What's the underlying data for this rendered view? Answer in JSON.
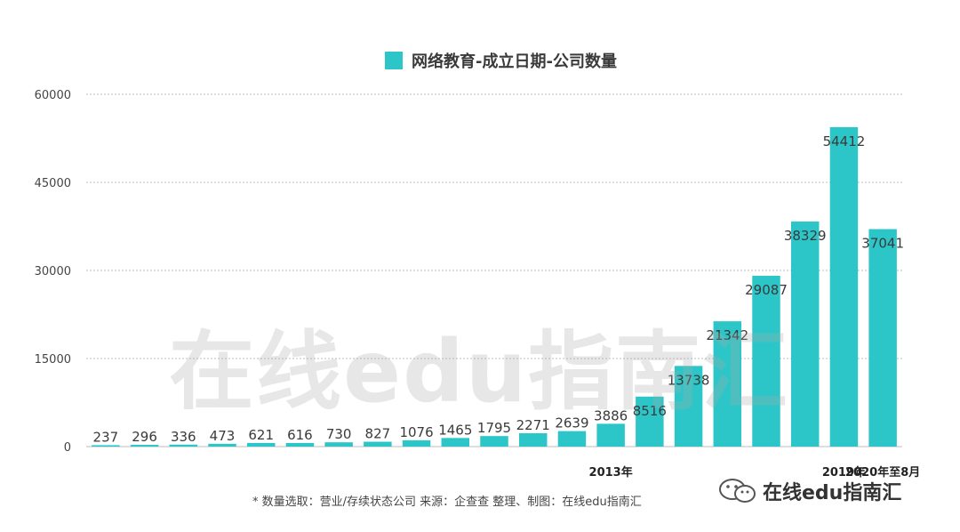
{
  "chart_data": {
    "type": "bar",
    "title": "",
    "legend": [
      {
        "name": "网络教育-成立日期-公司数量",
        "color": "#2CC6C8"
      }
    ],
    "categories": [
      "",
      "",
      "",
      "",
      "",
      "",
      "",
      "",
      "",
      "",
      "",
      "",
      "",
      "2013年",
      "",
      "",
      "",
      "",
      "",
      "2019年",
      "2020年至8月"
    ],
    "series": [
      {
        "name": "网络教育-成立日期-公司数量",
        "values": [
          237,
          296,
          336,
          473,
          621,
          616,
          730,
          827,
          1076,
          1465,
          1795,
          2271,
          2639,
          3886,
          8516,
          13738,
          21342,
          29087,
          38329,
          54412,
          37041
        ]
      }
    ],
    "yticks": [
      "0",
      "15000",
      "30000",
      "45000",
      "60000"
    ],
    "ylim": [
      0,
      60000
    ],
    "grid": true,
    "legend_position": "top-center"
  },
  "legend_label": "网络教育-成立日期-公司数量",
  "footnote": "*    数量选取：营业/存续状态公司   来源：企查查    整理、制图：在线edu指南汇",
  "watermark": "在线edu指南汇",
  "brand_name": "在线edu指南汇",
  "brand_icon": "wechat-icon",
  "colors": {
    "bar": "#2CC6C8",
    "grid": "#bdbdbd",
    "axis": "#444444"
  }
}
